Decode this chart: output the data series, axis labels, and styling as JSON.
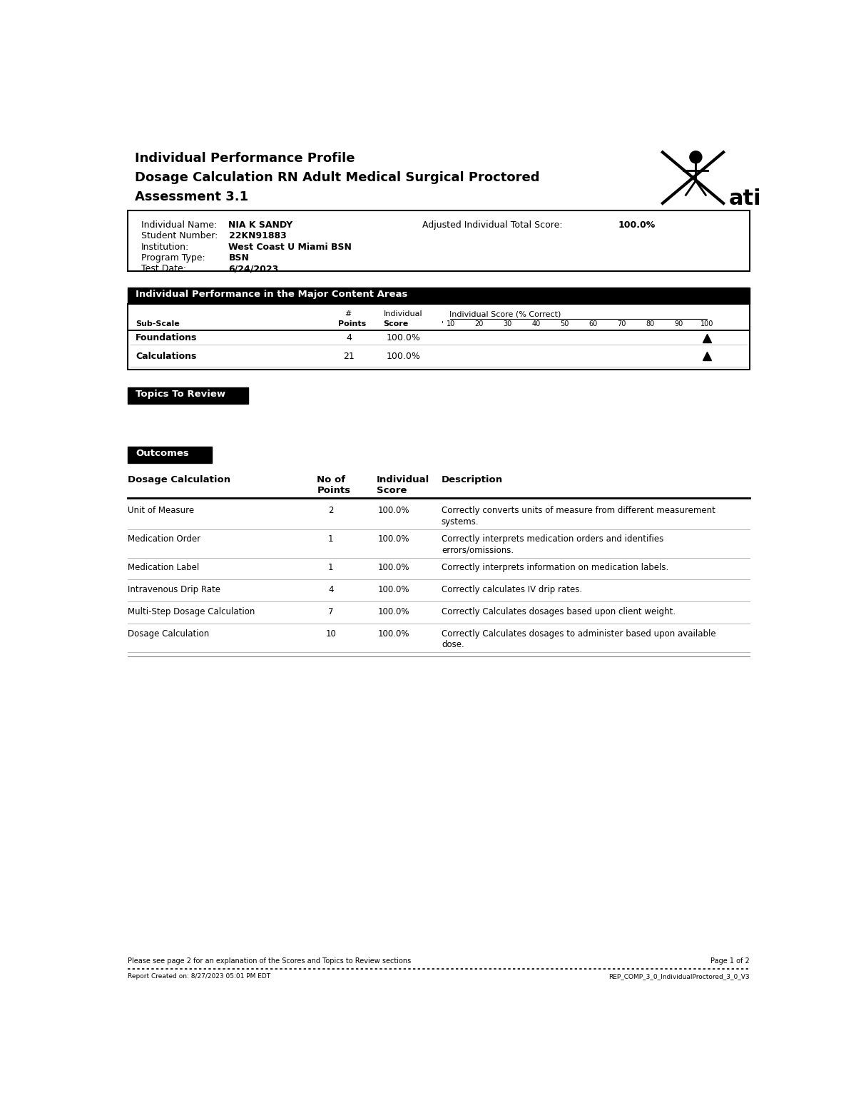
{
  "title_line1": "Individual Performance Profile",
  "title_line2": "Dosage Calculation RN Adult Medical Surgical Proctored",
  "title_line3": "Assessment 3.1",
  "student_info_labels": [
    "Individual Name:",
    "Student Number:",
    "Institution:",
    "Program Type:",
    "Test Date:"
  ],
  "student_info_values": [
    "NIA K SANDY",
    "22KN91883",
    "West Coast U Miami BSN",
    "BSN",
    "6/24/2023"
  ],
  "adjusted_score_label": "Adjusted Individual Total Score:",
  "adjusted_score_value": "100.0%",
  "section1_title": "Individual Performance in the Major Content Areas",
  "table1_scale_labels": [
    "10",
    "20",
    "30",
    "40",
    "50",
    "60",
    "70",
    "80",
    "90",
    "100"
  ],
  "table1_rows": [
    {
      "subscale": "Foundations",
      "points": "4",
      "score": "100.0%",
      "pct": 100
    },
    {
      "subscale": "Calculations",
      "points": "21",
      "score": "100.0%",
      "pct": 100
    }
  ],
  "section2_title": "Topics To Review",
  "section3_title": "Outcomes",
  "outcomes_col1": "Dosage Calculation",
  "outcomes_col2a": "No of",
  "outcomes_col2b": "Points",
  "outcomes_col3a": "Individual",
  "outcomes_col3b": "Score",
  "outcomes_col4": "Description",
  "outcomes_rows": [
    {
      "name": "Unit of Measure",
      "points": "2",
      "score": "100.0%",
      "desc1": "Correctly converts units of measure from different measurement",
      "desc2": "systems."
    },
    {
      "name": "Medication Order",
      "points": "1",
      "score": "100.0%",
      "desc1": "Correctly interprets medication orders and identifies",
      "desc2": "errors/omissions."
    },
    {
      "name": "Medication Label",
      "points": "1",
      "score": "100.0%",
      "desc1": "Correctly interprets information on medication labels.",
      "desc2": ""
    },
    {
      "name": "Intravenous Drip Rate",
      "points": "4",
      "score": "100.0%",
      "desc1": "Correctly calculates IV drip rates.",
      "desc2": ""
    },
    {
      "name": "Multi-Step Dosage Calculation",
      "points": "7",
      "score": "100.0%",
      "desc1": "Correctly Calculates dosages based upon client weight.",
      "desc2": ""
    },
    {
      "name": "Dosage Calculation",
      "points": "10",
      "score": "100.0%",
      "desc1": "Correctly Calculates dosages to administer based upon available",
      "desc2": "dose."
    }
  ],
  "footer_left": "Please see page 2 for an explanation of the Scores and Topics to Review sections",
  "footer_right": "Page 1 of 2",
  "footer_bottom_left": "Report Created on: 8/27/2023 05:01 PM EDT",
  "footer_bottom_right": "REP_COMP_3_0_IndividualProctored_3_0_V3",
  "bg_color": "#ffffff"
}
